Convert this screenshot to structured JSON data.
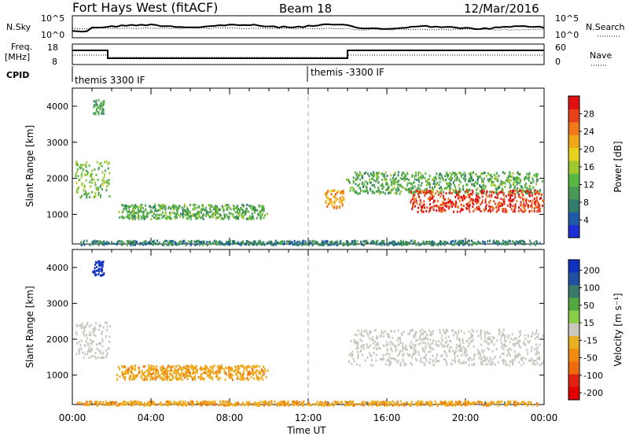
{
  "header": {
    "title": "Fort Hays West (fitACF)",
    "beam": "Beam 18",
    "date": "12/Mar/2016"
  },
  "summary": {
    "nsky_label": "N.Sky",
    "nsky_ticks": [
      "10^5",
      "10^0"
    ],
    "nsearch_label": "N.Search",
    "nsearch_ticks": [
      "10^5",
      "10^0"
    ],
    "freq_label": "Freq.",
    "freq_unit": "[MHz]",
    "freq_ticks": [
      "18",
      "8"
    ],
    "nave_label": "Nave",
    "nave_ticks": [
      "60",
      "0"
    ],
    "cpid_label": "CPID",
    "cpid_segments": [
      {
        "label": "themis 3300 IF",
        "start_hour": 0,
        "end_hour": 12
      },
      {
        "label": "themis -3300 IF",
        "start_hour": 12,
        "end_hour": 24
      }
    ],
    "freq_steps": [
      {
        "start_hour": 0,
        "end_hour": 1.8,
        "level": "high"
      },
      {
        "start_hour": 1.8,
        "end_hour": 14,
        "level": "low"
      },
      {
        "start_hour": 14,
        "end_hour": 24,
        "level": "high"
      }
    ]
  },
  "chart_data": [
    {
      "type": "heatmap",
      "name": "power",
      "ylabel": "Slant Range [km]",
      "xlabel": "Time UT",
      "x_ticks": [
        "00:00",
        "04:00",
        "08:00",
        "12:00",
        "16:00",
        "20:00",
        "00:00"
      ],
      "x_range_hours": [
        0,
        24
      ],
      "y_range_km": [
        180,
        4500
      ],
      "y_ticks": [
        1000,
        2000,
        3000,
        4000
      ],
      "colorbar": {
        "label": "Power [dB]",
        "ticks": [
          "4",
          "8",
          "12",
          "16",
          "20",
          "24",
          "28"
        ],
        "colors": [
          "#1f2fd6",
          "#1f5aa8",
          "#2f7d6a",
          "#4a9a55",
          "#58b840",
          "#9ec82e",
          "#e6d21c",
          "#f0a818",
          "#f07818",
          "#e8401a",
          "#e01010"
        ]
      },
      "features": [
        {
          "t0": 0.1,
          "t1": 1.9,
          "r0": 1500,
          "r1": 2500,
          "value_db": 14
        },
        {
          "t0": 1.0,
          "t1": 1.6,
          "r0": 3800,
          "r1": 4200,
          "value_db": 10
        },
        {
          "t0": 2.2,
          "t1": 10.0,
          "r0": 900,
          "r1": 1300,
          "value_db": 12
        },
        {
          "t0": 12.8,
          "t1": 13.8,
          "r0": 1200,
          "r1": 1700,
          "value_db": 22
        },
        {
          "t0": 13.9,
          "t1": 24.0,
          "r0": 1600,
          "r1": 2200,
          "value_db": 12
        },
        {
          "t0": 17.0,
          "t1": 24.0,
          "r0": 1100,
          "r1": 1700,
          "value_db": 28
        },
        {
          "t0": 0.0,
          "t1": 24.0,
          "r0": 180,
          "r1": 300,
          "value_db": 8
        }
      ]
    },
    {
      "type": "heatmap",
      "name": "velocity",
      "ylabel": "Slant Range [km]",
      "xlabel": "Time UT",
      "x_ticks": [
        "00:00",
        "04:00",
        "08:00",
        "12:00",
        "16:00",
        "20:00",
        "00:00"
      ],
      "x_range_hours": [
        0,
        24
      ],
      "y_range_km": [
        180,
        4500
      ],
      "y_ticks": [
        1000,
        2000,
        3000,
        4000
      ],
      "colorbar": {
        "label": "Velocity [m s⁻¹]",
        "ticks": [
          "200",
          "100",
          "50",
          "15",
          "-15",
          "-50",
          "-100",
          "-200"
        ],
        "colors": [
          "#1030c0",
          "#2050a0",
          "#3a7a6a",
          "#52a840",
          "#88cc48",
          "#c8c8c0",
          "#e8b020",
          "#f08a10",
          "#f06a10",
          "#e02010",
          "#e00000"
        ]
      },
      "features": [
        {
          "t0": 0.1,
          "t1": 1.9,
          "r0": 1500,
          "r1": 2500,
          "value_ms": 0
        },
        {
          "t0": 1.0,
          "t1": 1.6,
          "r0": 3800,
          "r1": 4200,
          "value_ms": 200
        },
        {
          "t0": 2.2,
          "t1": 10.0,
          "r0": 900,
          "r1": 1300,
          "value_ms": -50
        },
        {
          "t0": 13.9,
          "t1": 24.0,
          "r0": 1300,
          "r1": 2300,
          "value_ms": 0
        },
        {
          "t0": 0.0,
          "t1": 24.0,
          "r0": 180,
          "r1": 300,
          "value_ms": -50
        }
      ]
    }
  ]
}
